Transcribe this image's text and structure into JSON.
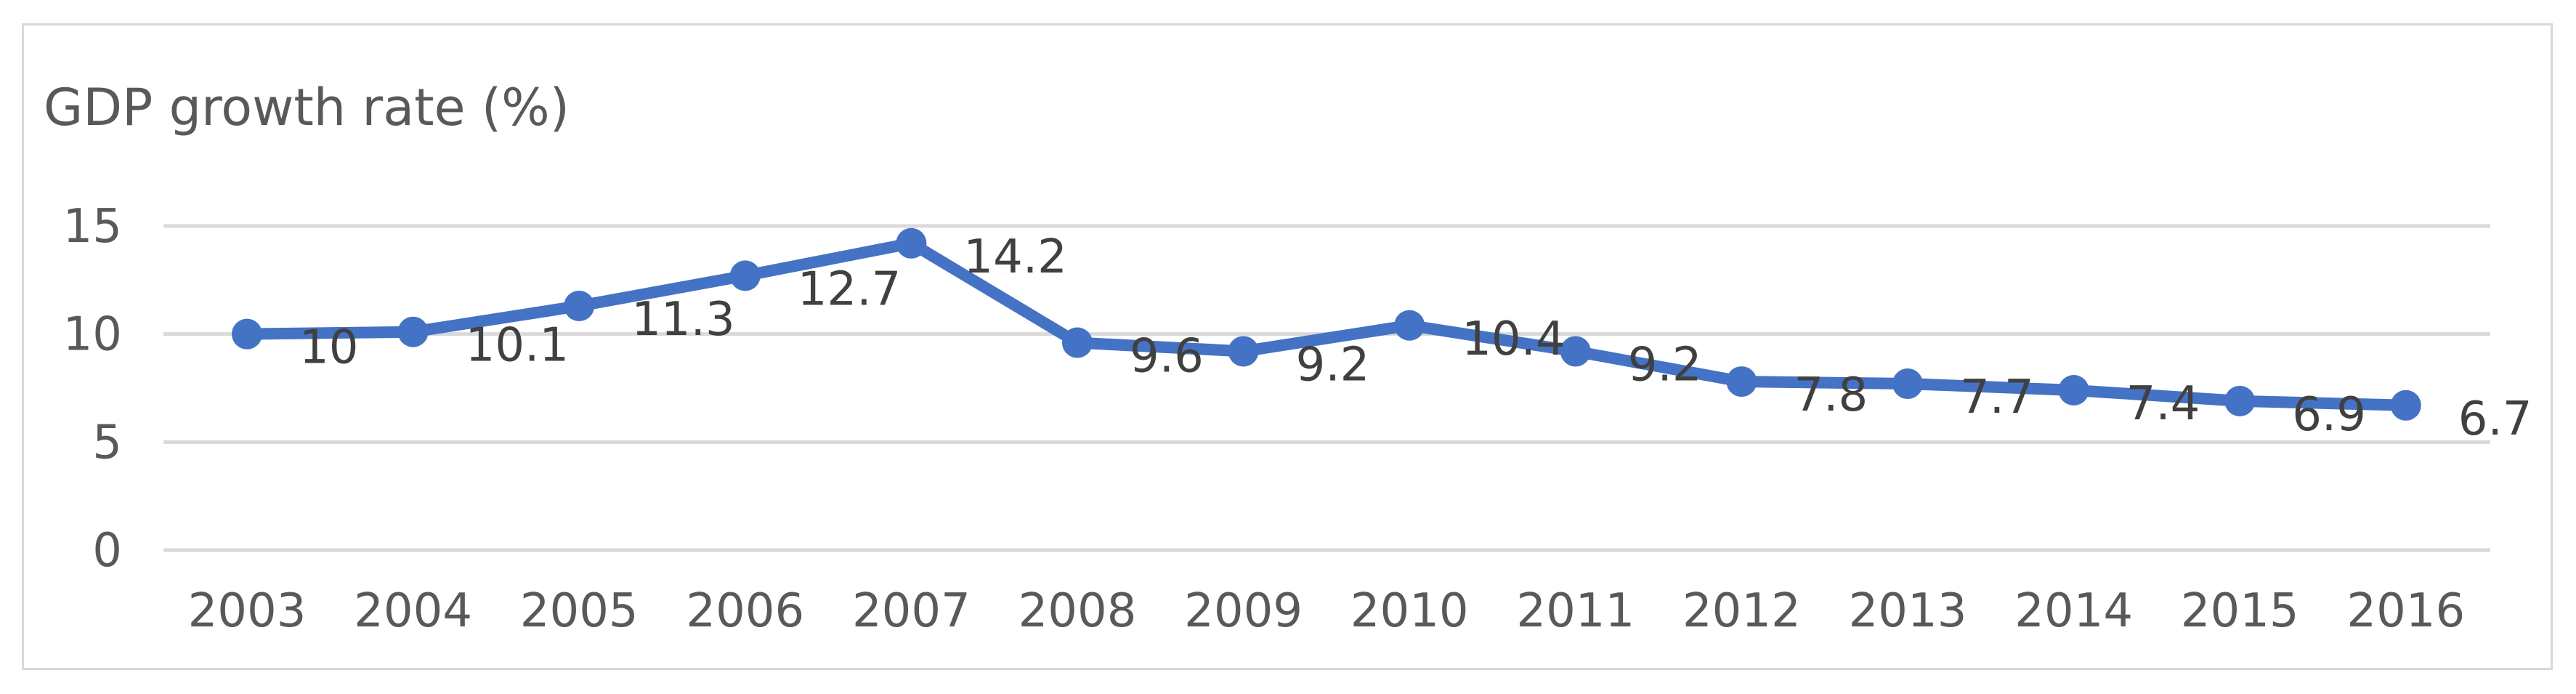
{
  "chart_data": {
    "type": "line",
    "title": "GDP growth rate (%)",
    "xlabel": "",
    "ylabel": "",
    "categories": [
      "2003",
      "2004",
      "2005",
      "2006",
      "2007",
      "2008",
      "2009",
      "2010",
      "2011",
      "2012",
      "2013",
      "2014",
      "2015",
      "2016"
    ],
    "series": [
      {
        "values": [
          10,
          10.1,
          11.3,
          12.7,
          14.2,
          9.6,
          9.2,
          10.4,
          9.2,
          7.8,
          7.7,
          7.4,
          6.9,
          6.7
        ],
        "labels": [
          "10",
          "10.1",
          "11.3",
          "12.7",
          "14.2",
          "9.6",
          "9.2",
          "10.4",
          "9.2",
          "7.8",
          "7.7",
          "7.4",
          "6.9",
          "6.7"
        ],
        "color": "#4472c4"
      }
    ],
    "ylim": [
      0,
      15
    ],
    "yticks": [
      0,
      5,
      10,
      15
    ],
    "ytick_labels": [
      "0",
      "5",
      "10",
      "15"
    ],
    "grid": true,
    "legend": "none"
  }
}
